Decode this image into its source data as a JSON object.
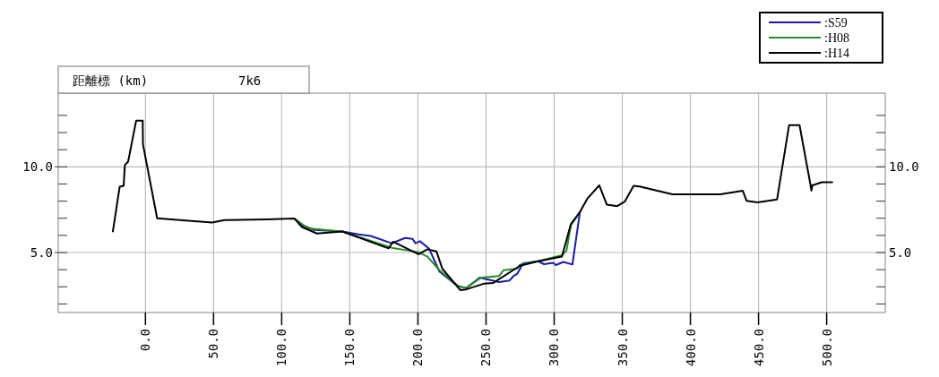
{
  "chart_data": {
    "type": "line",
    "annotations": [
      "距離標 (km)",
      "7k6"
    ],
    "xlim": [
      -64,
      543
    ],
    "xticks": [
      {
        "value": 0,
        "label": "0.0"
      },
      {
        "value": 50,
        "label": "50.0"
      },
      {
        "value": 100,
        "label": "100.0"
      },
      {
        "value": 150,
        "label": "150.0"
      },
      {
        "value": 200,
        "label": "200.0"
      },
      {
        "value": 250,
        "label": "250.0"
      },
      {
        "value": 300,
        "label": "300.0"
      },
      {
        "value": 350,
        "label": "350.0"
      },
      {
        "value": 400,
        "label": "400.0"
      },
      {
        "value": 450,
        "label": "450.0"
      },
      {
        "value": 500,
        "label": "500.0"
      }
    ],
    "ylim": [
      1.5,
      14.3
    ],
    "yticks": [
      {
        "value": 2,
        "label": null
      },
      {
        "value": 3,
        "label": null
      },
      {
        "value": 4,
        "label": null
      },
      {
        "value": 5,
        "label": "5.0"
      },
      {
        "value": 6,
        "label": null
      },
      {
        "value": 7,
        "label": null
      },
      {
        "value": 8,
        "label": null
      },
      {
        "value": 9,
        "label": null
      },
      {
        "value": 10,
        "label": "10.0"
      },
      {
        "value": 11,
        "label": null
      },
      {
        "value": 12,
        "label": null
      },
      {
        "value": 13,
        "label": null
      }
    ],
    "y2lim": [
      1.5,
      14.3
    ],
    "y2ticks": [
      {
        "value": 2,
        "label": null
      },
      {
        "value": 3,
        "label": null
      },
      {
        "value": 4,
        "label": null
      },
      {
        "value": 5,
        "label": "5.0"
      },
      {
        "value": 6,
        "label": null
      },
      {
        "value": 7,
        "label": null
      },
      {
        "value": 8,
        "label": null
      },
      {
        "value": 9,
        "label": null
      },
      {
        "value": 10,
        "label": "10.0"
      },
      {
        "value": 11,
        "label": null
      },
      {
        "value": 12,
        "label": null
      },
      {
        "value": 13,
        "label": null
      }
    ],
    "grid": true,
    "legend": "top right",
    "line_style": "solid",
    "series": [
      {
        "name": ":S59",
        "color": "#1a1aa8",
        "x": [
          112.7,
          123.7,
          144.5,
          156.6,
          165.4,
          180.7,
          190.6,
          196.1,
          198.2,
          201.5,
          208.1,
          215.8,
          228.9,
          235.5,
          245.4,
          259.6,
          267.3,
          270.2,
          272.8,
          275,
          277.2,
          288.2,
          292.6,
          299.1,
          301.3,
          306.8,
          313.4,
          318.9
        ],
        "values": [
          6.67,
          6.32,
          6.23,
          6.06,
          5.97,
          5.54,
          5.85,
          5.8,
          5.54,
          5.66,
          5.24,
          3.89,
          3.06,
          2.93,
          3.54,
          3.28,
          3.37,
          3.63,
          3.75,
          4.06,
          4.38,
          4.49,
          4.32,
          4.4,
          4.27,
          4.45,
          4.3,
          7.36
        ]
      },
      {
        "name": ":H08",
        "color": "#2a8a2a",
        "x": [
          109.4,
          119.3,
          144.5,
          180.7,
          200.4,
          207,
          215.8,
          230,
          235.5,
          240,
          246.5,
          259.6,
          262.9,
          272.8,
          275,
          288.2,
          305.7,
          309,
          312.3,
          318.9
        ],
        "values": [
          6.98,
          6.41,
          6.23,
          5.28,
          5.02,
          4.76,
          3.97,
          3.02,
          2.93,
          3.19,
          3.54,
          3.63,
          3.97,
          4.06,
          4.3,
          4.49,
          4.84,
          5.1,
          6.6,
          7.36
        ]
      },
      {
        "name": ":H14",
        "color": "#000000",
        "x": [
          -23.9,
          -18.9,
          -16,
          -15.1,
          -12.7,
          -6.8,
          -2,
          -1.8,
          8.6,
          33.8,
          49.1,
          57.9,
          88.6,
          109.4,
          114.9,
          125.9,
          144.5,
          178.5,
          181.8,
          200.4,
          207,
          213.6,
          217.9,
          231.1,
          235.5,
          248.7,
          255.3,
          275,
          288.2,
          305.7,
          312.3,
          318.9,
          324.3,
          333.1,
          338.6,
          346.3,
          351.8,
          358.3,
          362.7,
          386.8,
          421.9,
          438.4,
          441.2,
          449.3,
          463.6,
          472.4,
          480.1,
          488.2,
          488.8,
          489.5,
          496.5,
          504.1
        ],
        "values": [
          6.23,
          8.84,
          8.89,
          10.1,
          10.3,
          12.7,
          12.7,
          11.3,
          7,
          6.84,
          6.75,
          6.89,
          6.93,
          6.98,
          6.49,
          6.11,
          6.23,
          5.24,
          5.63,
          4.9,
          5.19,
          5.07,
          4.06,
          2.81,
          2.85,
          3.19,
          3.23,
          4.23,
          4.49,
          4.76,
          6.67,
          7.36,
          8.14,
          8.92,
          7.8,
          7.71,
          7.97,
          8.89,
          8.85,
          8.4,
          8.4,
          8.61,
          8.02,
          7.93,
          8.09,
          12.43,
          12.43,
          8.92,
          8.61,
          8.92,
          9.1,
          9.1
        ]
      }
    ]
  }
}
